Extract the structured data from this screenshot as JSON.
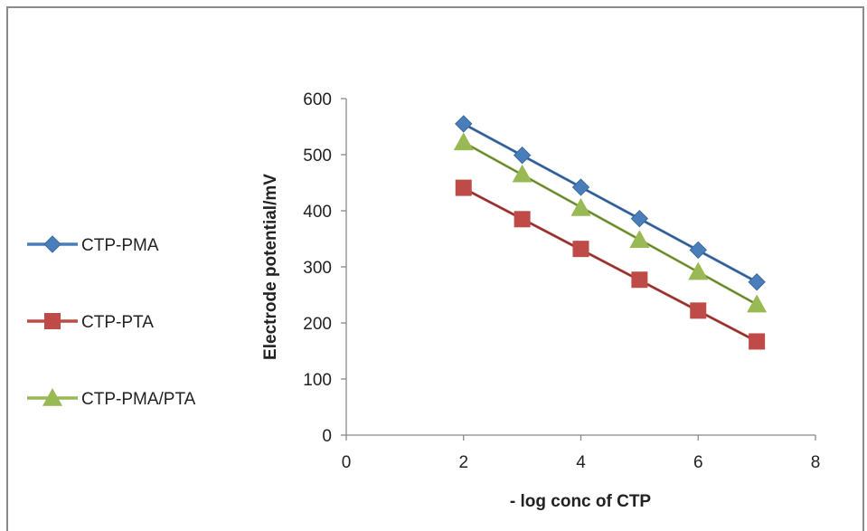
{
  "chart_data": {
    "type": "scatter",
    "title": "",
    "xlabel": "- log conc of CTP",
    "ylabel": "Electrode potential/mV",
    "xlim": [
      0,
      8
    ],
    "ylim": [
      0,
      600
    ],
    "xticks": [
      "0",
      "2",
      "4",
      "6",
      "8"
    ],
    "yticks": [
      "0",
      "100",
      "200",
      "300",
      "400",
      "500",
      "600"
    ],
    "grid": false,
    "legend_position": "left",
    "series": [
      {
        "name": "CTP-PMA",
        "color": "#4a7ebb",
        "marker": "diamond",
        "x": [
          2,
          3,
          4,
          5,
          6,
          7
        ],
        "y": [
          555,
          499,
          442,
          386,
          330,
          273
        ],
        "trendline": {
          "x": [
            2,
            7
          ],
          "y": [
            555,
            273
          ]
        }
      },
      {
        "name": "CTP-PTA",
        "color": "#be4b48",
        "marker": "square",
        "x": [
          2,
          3,
          4,
          5,
          6,
          7
        ],
        "y": [
          441,
          385,
          332,
          277,
          222,
          167
        ],
        "trendline": {
          "x": [
            2,
            7
          ],
          "y": [
            440,
            167
          ]
        }
      },
      {
        "name": "CTP-PMA/PTA",
        "color": "#98b954",
        "marker": "triangle",
        "x": [
          2,
          3,
          4,
          5,
          6,
          7
        ],
        "y": [
          522,
          465,
          405,
          348,
          291,
          233
        ],
        "trendline": {
          "x": [
            2,
            7
          ],
          "y": [
            522,
            233
          ]
        }
      }
    ]
  }
}
